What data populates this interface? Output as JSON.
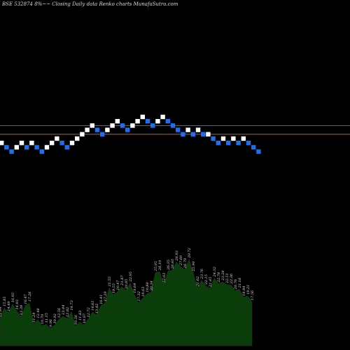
{
  "title": "BSE 532874  8%~~  Closing Daily data  Renko  charts MunafaSutra.com",
  "colors": {
    "background": "#000000",
    "up_brick": "#ffffff",
    "down_brick": "#1e6ff0",
    "reference_line": "#c8782a",
    "volume_fill": "#0a3d0a",
    "volume_edge": "#2a2a2a",
    "label": "#dddddd"
  },
  "chart_data": {
    "type": "renko",
    "bricks": [
      {
        "dir": "up",
        "level": 0
      },
      {
        "dir": "down",
        "level": -1
      },
      {
        "dir": "down",
        "level": -2
      },
      {
        "dir": "up",
        "level": -1
      },
      {
        "dir": "up",
        "level": 0
      },
      {
        "dir": "down",
        "level": -1
      },
      {
        "dir": "up",
        "level": 0
      },
      {
        "dir": "down",
        "level": -1
      },
      {
        "dir": "down",
        "level": -2
      },
      {
        "dir": "up",
        "level": -1
      },
      {
        "dir": "up",
        "level": 0
      },
      {
        "dir": "up",
        "level": 1
      },
      {
        "dir": "down",
        "level": 0
      },
      {
        "dir": "down",
        "level": -1
      },
      {
        "dir": "up",
        "level": 0
      },
      {
        "dir": "up",
        "level": 1
      },
      {
        "dir": "up",
        "level": 2
      },
      {
        "dir": "up",
        "level": 3
      },
      {
        "dir": "up",
        "level": 4
      },
      {
        "dir": "down",
        "level": 3
      },
      {
        "dir": "down",
        "level": 2
      },
      {
        "dir": "up",
        "level": 3
      },
      {
        "dir": "up",
        "level": 4
      },
      {
        "dir": "up",
        "level": 5
      },
      {
        "dir": "down",
        "level": 4
      },
      {
        "dir": "down",
        "level": 3
      },
      {
        "dir": "up",
        "level": 4
      },
      {
        "dir": "up",
        "level": 5
      },
      {
        "dir": "up",
        "level": 6
      },
      {
        "dir": "down",
        "level": 5
      },
      {
        "dir": "down",
        "level": 4
      },
      {
        "dir": "up",
        "level": 5
      },
      {
        "dir": "up",
        "level": 6
      },
      {
        "dir": "down",
        "level": 5
      },
      {
        "dir": "down",
        "level": 4
      },
      {
        "dir": "down",
        "level": 3
      },
      {
        "dir": "down",
        "level": 2
      },
      {
        "dir": "up",
        "level": 3
      },
      {
        "dir": "down",
        "level": 2
      },
      {
        "dir": "up",
        "level": 3
      },
      {
        "dir": "down",
        "level": 2
      },
      {
        "dir": "up",
        "level": 2
      },
      {
        "dir": "down",
        "level": 1
      },
      {
        "dir": "down",
        "level": 0
      },
      {
        "dir": "up",
        "level": 1
      },
      {
        "dir": "down",
        "level": 0
      },
      {
        "dir": "up",
        "level": 1
      },
      {
        "dir": "down",
        "level": 0
      },
      {
        "dir": "up",
        "level": 1
      },
      {
        "dir": "down",
        "level": 0
      },
      {
        "dir": "down",
        "level": -1
      },
      {
        "dir": "down",
        "level": -2
      }
    ],
    "reference_lines": [
      4,
      2
    ],
    "volume_labels": [
      "12.84",
      "15.85",
      "14.49",
      "16.95",
      "14.93",
      "13.38",
      "16.47",
      "17.26",
      "11.24",
      "12.48",
      "10.79",
      "11.15",
      "9.96",
      "10.92",
      "12.56",
      "13.44",
      "12.82",
      "14.73",
      "10.56",
      "11.83",
      "10.97",
      "12.72",
      "14.65",
      "13.82",
      "16.41",
      "17.29",
      "21.55",
      "19.55",
      "20.47",
      "21.87",
      "20.85",
      "22.95",
      "19.64",
      "17.32",
      "18.63",
      "19.89",
      "20.34",
      "25.95",
      "26.19",
      "22.63",
      "26.35",
      "26.61",
      "28.93",
      "27.60",
      "26.79",
      "29.72",
      "25.90",
      "21.62",
      "23.76",
      "22.15",
      "21.45",
      "24.32",
      "22.78",
      "23.28",
      "22.51",
      "22.36",
      "20.76",
      "21.18",
      "18.84",
      "19.21",
      "17.56"
    ]
  }
}
